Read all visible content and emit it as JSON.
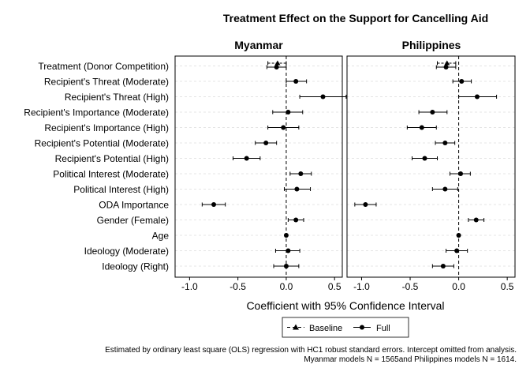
{
  "chart_data": {
    "type": "forest",
    "title": "Treatment Effect on the Support for Cancelling Aid",
    "xlabel": "Coefficient with 95% Confidence Interval",
    "xlim": [
      -1.15,
      0.58
    ],
    "xticks": [
      -1.0,
      -0.5,
      0.0,
      0.5
    ],
    "xtick_labels": [
      "-1.0",
      "-0.5",
      "0.0",
      "0.5"
    ],
    "reference_line": 0,
    "grid": "horizontal dashed",
    "legend_position": "bottom",
    "legend": [
      {
        "name": "Baseline",
        "line": "dashed",
        "marker": "triangle"
      },
      {
        "name": "Full",
        "line": "solid",
        "marker": "circle"
      }
    ],
    "categories": [
      "Treatment (Donor Competition)",
      "Recipient's Threat (Moderate)",
      "Recipient's Threat (High)",
      "Recipient's Importance (Moderate)",
      "Recipient's Importance (High)",
      "Recipient's Potential (Moderate)",
      "Recipient's Potential (High)",
      "Political Interest (Moderate)",
      "Political Interest (High)",
      "ODA Importance",
      "Gender (Female)",
      "Age",
      "Ideology (Moderate)",
      "Ideology (Right)"
    ],
    "panels": [
      {
        "name": "Myanmar",
        "baseline": {
          "category": "Treatment (Donor Competition)",
          "est": -0.09,
          "low": -0.19,
          "high": 0.0
        },
        "full": [
          {
            "est": -0.1,
            "low": -0.2,
            "high": 0.0
          },
          {
            "est": 0.1,
            "low": 0.0,
            "high": 0.21
          },
          {
            "est": 0.38,
            "low": 0.14,
            "high": 0.62
          },
          {
            "est": 0.02,
            "low": -0.14,
            "high": 0.17
          },
          {
            "est": -0.03,
            "low": -0.19,
            "high": 0.13
          },
          {
            "est": -0.21,
            "low": -0.32,
            "high": -0.1
          },
          {
            "est": -0.41,
            "low": -0.55,
            "high": -0.27
          },
          {
            "est": 0.15,
            "low": 0.04,
            "high": 0.26
          },
          {
            "est": 0.11,
            "low": -0.02,
            "high": 0.25
          },
          {
            "est": -0.75,
            "low": -0.87,
            "high": -0.63
          },
          {
            "est": 0.1,
            "low": 0.02,
            "high": 0.18
          },
          {
            "est": 0.0,
            "low": -0.01,
            "high": 0.01
          },
          {
            "est": 0.02,
            "low": -0.11,
            "high": 0.14
          },
          {
            "est": 0.0,
            "low": -0.13,
            "high": 0.13
          }
        ]
      },
      {
        "name": "Philippines",
        "baseline": {
          "category": "Treatment (Donor Competition)",
          "est": -0.12,
          "low": -0.22,
          "high": -0.03
        },
        "full": [
          {
            "est": -0.13,
            "low": -0.23,
            "high": -0.03
          },
          {
            "est": 0.03,
            "low": -0.06,
            "high": 0.13
          },
          {
            "est": 0.19,
            "low": 0.0,
            "high": 0.39
          },
          {
            "est": -0.27,
            "low": -0.41,
            "high": -0.12
          },
          {
            "est": -0.38,
            "low": -0.53,
            "high": -0.23
          },
          {
            "est": -0.14,
            "low": -0.24,
            "high": -0.04
          },
          {
            "est": -0.35,
            "low": -0.48,
            "high": -0.22
          },
          {
            "est": 0.02,
            "low": -0.09,
            "high": 0.12
          },
          {
            "est": -0.14,
            "low": -0.27,
            "high": -0.01
          },
          {
            "est": -0.96,
            "low": -1.07,
            "high": -0.85
          },
          {
            "est": 0.18,
            "low": 0.1,
            "high": 0.26
          },
          {
            "est": 0.0,
            "low": -0.01,
            "high": 0.01
          },
          {
            "est": -0.02,
            "low": -0.13,
            "high": 0.09
          },
          {
            "est": -0.16,
            "low": -0.27,
            "high": -0.05
          }
        ]
      }
    ],
    "notes": [
      "Estimated by ordinary least square (OLS) regression with HC1 robust standard errors. Intercept omitted from analysis.",
      "Myanmar models N = 1565and Philippines models N = 1614."
    ]
  }
}
